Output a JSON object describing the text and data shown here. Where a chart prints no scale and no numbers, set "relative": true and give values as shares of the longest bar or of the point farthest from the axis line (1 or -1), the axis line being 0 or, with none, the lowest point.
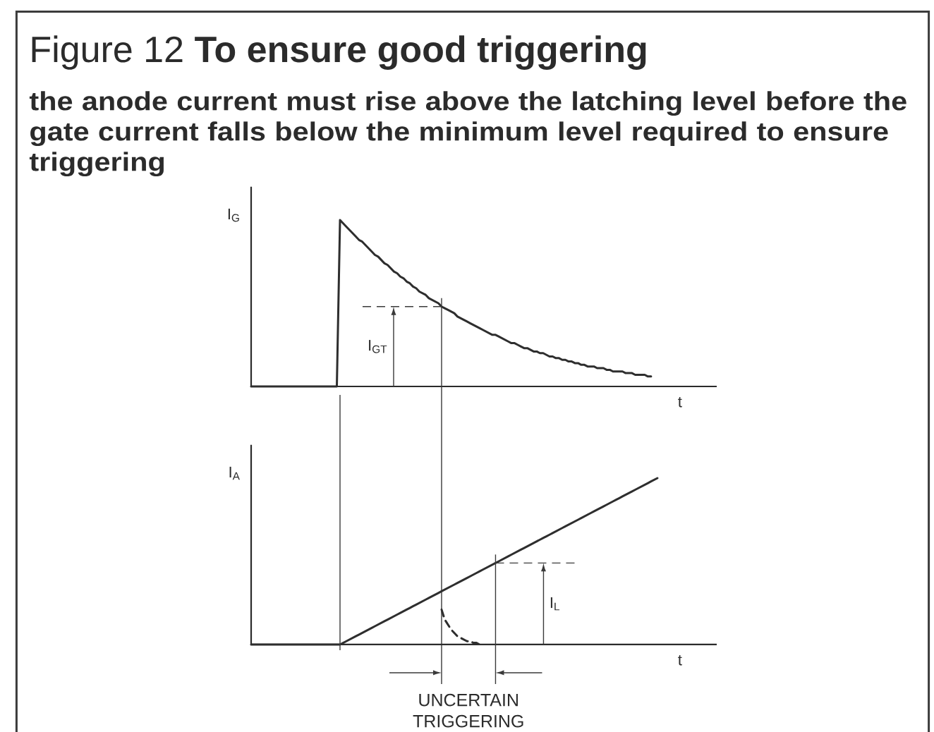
{
  "chart_data": [
    {
      "type": "line",
      "title": "Figure 12 **To ensure good triggering**",
      "subtitle": "the anode current must rise above the latching level before the gate current falls below the minimum level required to ensure triggering",
      "xlabel": "t",
      "ylabel": "I$_{G}$",
      "relative": true,
      "categories": [
        null,
        null,
        null,
        null,
        null,
        null,
        null,
        null,
        null,
        null,
        null,
        null,
        null,
        null,
        null,
        null,
        null,
        null,
        null,
        null,
        null,
        null,
        null,
        null,
        null,
        null,
        null,
        null,
        null,
        null,
        null,
        null,
        null,
        null,
        null,
        null,
        null,
        null,
        null,
        null,
        null,
        null,
        null,
        null,
        null,
        null,
        null,
        null,
        null,
        null,
        null,
        null,
        null,
        null,
        null,
        null,
        null,
        null,
        null,
        null,
        null,
        null,
        null,
        null,
        null,
        null,
        null,
        null,
        null,
        null,
        null,
        null,
        null,
        null,
        null,
        null,
        null,
        null,
        null,
        null,
        null,
        null,
        null,
        null,
        null,
        null,
        null,
        null,
        null,
        null,
        null,
        null,
        null,
        null,
        null,
        null,
        null,
        null,
        null,
        null,
        null,
        null,
        null,
        null,
        null,
        null,
        null,
        null,
        null,
        null,
        null,
        null,
        null,
        null,
        null,
        null,
        null,
        null,
        null,
        null,
        null,
        null,
        null,
        null,
        null,
        null,
        null,
        null,
        null
      ],
      "series": [
        {
          "color": "#2e2e2e",
          "values": [
            0,
            0,
            0,
            0,
            0,
            0,
            0,
            0,
            0,
            0,
            0,
            0,
            0,
            0,
            0,
            0,
            0,
            0,
            0,
            0,
            0,
            0,
            0,
            0,
            0,
            0,
            0,
            0,
            1,
            0.98,
            0.96,
            0.94,
            0.92,
            0.9,
            0.88,
            0.87,
            0.85,
            0.83,
            0.81,
            0.79,
            0.78,
            0.76,
            0.74,
            0.73,
            0.71,
            0.69,
            0.68,
            0.66,
            0.65,
            0.63,
            0.62,
            0.6,
            0.59,
            0.57,
            0.56,
            0.55,
            0.53,
            0.52,
            0.51,
            0.5,
            0.48,
            0.47,
            0.46,
            0.45,
            0.44,
            0.42,
            0.41,
            0.4,
            0.39,
            0.38,
            0.37,
            0.36,
            0.35,
            0.34,
            0.33,
            0.32,
            0.31,
            0.31,
            0.3,
            0.29,
            0.28,
            0.27,
            0.26,
            0.26,
            0.25,
            0.24,
            0.23,
            0.23,
            0.22,
            0.21,
            0.21,
            0.2,
            0.2,
            0.19,
            0.18,
            0.18,
            0.17,
            0.17,
            0.16,
            0.16,
            0.15,
            0.15,
            0.14,
            0.14,
            0.13,
            0.13,
            0.12,
            0.12,
            0.12,
            0.11,
            0.11,
            0.11,
            0.1,
            0.1,
            0.09,
            0.09,
            0.09,
            0.09,
            0.08,
            0.08,
            0.08,
            0.07,
            0.07,
            0.07,
            0.07,
            0.06,
            0.06,
            null,
            null
          ]
        }
      ],
      "ref_lines": [
        {
          "axis": "y",
          "value": 0.48,
          "label": "I$_{GT}$",
          "line_style": "dashed"
        }
      ]
    },
    {
      "type": "line",
      "xlabel": "t",
      "ylabel": "I$_{A}$",
      "relative": true,
      "categories": [
        null,
        null,
        null,
        null,
        null,
        null,
        null,
        null,
        null,
        null,
        null,
        null,
        null,
        null,
        null,
        null,
        null,
        null,
        null,
        null,
        null,
        null,
        null,
        null,
        null,
        null,
        null,
        null,
        null,
        null,
        null,
        null,
        null,
        null,
        null,
        null,
        null,
        null,
        null,
        null,
        null,
        null,
        null,
        null,
        null,
        null,
        null,
        null,
        null,
        null,
        null,
        null,
        null,
        null,
        null,
        null,
        null,
        null,
        null,
        null,
        null,
        null,
        null,
        null,
        null,
        null,
        null,
        null,
        null,
        null,
        null,
        null,
        null,
        null,
        null,
        null,
        null,
        null,
        null,
        null,
        null,
        null,
        null,
        null,
        null,
        null,
        null,
        null,
        null,
        null,
        null,
        null,
        null,
        null,
        null,
        null,
        null,
        null,
        null,
        null,
        null,
        null,
        null,
        null,
        null,
        null,
        null,
        null,
        null,
        null,
        null,
        null,
        null,
        null,
        null,
        null,
        null,
        null,
        null,
        null,
        null,
        null,
        null,
        null,
        null,
        null,
        null,
        null,
        null
      ],
      "series": [
        {
          "color": "#2e2e2e",
          "values": [
            0,
            0,
            0,
            0,
            0,
            0,
            0,
            0,
            0,
            0,
            0,
            0,
            0,
            0,
            0,
            0,
            0,
            0,
            0,
            0,
            0,
            0,
            0,
            0,
            0,
            0,
            0,
            0,
            0,
            0.01,
            0.02,
            0.03,
            0.04,
            0.05,
            0.06,
            0.07,
            0.08,
            0.09,
            0.1,
            0.11,
            0.12,
            0.13,
            0.14,
            0.15,
            0.16,
            0.17,
            0.18,
            0.19,
            0.2,
            0.21,
            0.22,
            0.23,
            0.24,
            0.25,
            0.26,
            0.27,
            0.28,
            0.29,
            0.3,
            0.31,
            0.32,
            0.33,
            0.34,
            0.35,
            0.36,
            0.37,
            0.38,
            0.39,
            0.4,
            0.41,
            0.42,
            0.43,
            0.44,
            0.45,
            0.46,
            0.47,
            0.48,
            0.49,
            0.5,
            0.51,
            0.52,
            0.53,
            0.54,
            0.55,
            0.56,
            0.57,
            0.58,
            0.59,
            0.6,
            0.61,
            0.62,
            0.63,
            0.64,
            0.65,
            0.66,
            0.67,
            0.68,
            0.69,
            0.7,
            0.71,
            0.72,
            0.73,
            0.74,
            0.75,
            0.76,
            0.77,
            0.78,
            0.79,
            0.8,
            0.81,
            0.82,
            0.83,
            0.84,
            0.85,
            0.86,
            0.87,
            0.88,
            0.89,
            0.9,
            0.91,
            0.92,
            0.93,
            0.94,
            0.95,
            0.96,
            0.97,
            0.98,
            0.99,
            1
          ]
        },
        {
          "color": "#2e2e2e",
          "line_style": "dashed",
          "values": [
            null,
            null,
            null,
            null,
            null,
            null,
            null,
            null,
            null,
            null,
            null,
            null,
            null,
            null,
            null,
            null,
            null,
            null,
            null,
            null,
            null,
            null,
            null,
            null,
            null,
            null,
            null,
            null,
            null,
            null,
            null,
            null,
            null,
            null,
            null,
            null,
            null,
            null,
            null,
            null,
            null,
            null,
            null,
            null,
            null,
            null,
            null,
            null,
            null,
            null,
            null,
            null,
            null,
            null,
            null,
            null,
            null,
            null,
            null,
            null,
            0.21,
            0.15,
            0.12,
            0.09,
            0.07,
            0.05,
            0.04,
            0.03,
            0.02,
            0.02,
            0.01,
            0.01,
            0,
            0,
            null,
            null,
            null,
            null,
            null,
            null,
            null,
            null,
            null,
            null,
            null,
            null,
            null,
            null,
            null,
            null,
            null,
            null,
            null,
            null,
            null,
            null,
            null,
            null,
            null,
            null,
            null,
            null,
            null,
            null,
            null,
            null,
            null,
            null,
            null,
            null,
            null,
            null,
            null,
            null,
            null,
            null,
            null,
            null,
            null,
            null,
            null,
            null,
            null,
            null,
            null,
            null,
            null,
            null,
            null
          ]
        }
      ],
      "ref_lines": [
        {
          "axis": "y",
          "value": 0.49,
          "label": "I$_{L}$",
          "line_style": "dashed"
        }
      ],
      "annotations": [
        "UNCERTAIN TRIGGERING"
      ]
    }
  ]
}
